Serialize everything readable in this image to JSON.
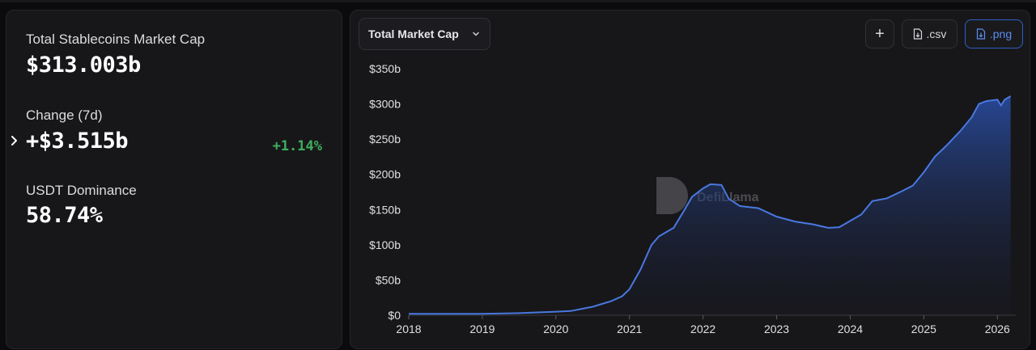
{
  "stats": {
    "market_cap_label": "Total Stablecoins Market Cap",
    "market_cap_value": "$313.003b",
    "change_label": "Change (7d)",
    "change_value": "+$3.515b",
    "change_pct": "+1.14%",
    "dominance_label": "USDT Dominance",
    "dominance_value": "58.74%"
  },
  "toolbar": {
    "metric_select": "Total Market Cap",
    "add_label": "+",
    "csv_label": ".csv",
    "png_label": ".png"
  },
  "watermark": "DefiLlama",
  "colors": {
    "accent": "#4a78e0",
    "positive": "#3fae5c",
    "panel": "#17171a"
  },
  "chart_data": {
    "type": "area",
    "title": "",
    "xlabel": "",
    "ylabel": "",
    "x_ticks": [
      "2018",
      "2019",
      "2020",
      "2021",
      "2022",
      "2023",
      "2024",
      "2025",
      "2026"
    ],
    "y_ticks": [
      "$0",
      "$50b",
      "$100b",
      "$150b",
      "$200b",
      "$250b",
      "$300b",
      "$350b"
    ],
    "xlim": [
      2018.0,
      2026.25
    ],
    "ylim": [
      0,
      350
    ],
    "unit": "billions USD",
    "series": [
      {
        "x": [
          2018.0,
          2018.5,
          2019.0,
          2019.5,
          2019.75,
          2020.0,
          2020.2,
          2020.5,
          2020.75,
          2020.9,
          2021.0,
          2021.15,
          2021.3,
          2021.4,
          2021.6,
          2021.75,
          2021.85,
          2022.0,
          2022.1,
          2022.25,
          2022.35,
          2022.4,
          2022.5,
          2022.75,
          2023.0,
          2023.25,
          2023.5,
          2023.7,
          2023.85,
          2024.0,
          2024.15,
          2024.3,
          2024.5,
          2024.7,
          2024.85,
          2025.0,
          2025.15,
          2025.3,
          2025.5,
          2025.65,
          2025.75,
          2025.85,
          2026.0,
          2026.05,
          2026.1,
          2026.18
        ],
        "y": [
          2,
          2,
          2,
          3,
          4,
          5,
          6,
          12,
          20,
          27,
          37,
          65,
          100,
          112,
          124,
          150,
          168,
          180,
          186,
          185,
          165,
          162,
          155,
          152,
          140,
          133,
          129,
          124,
          125,
          134,
          143,
          162,
          166,
          176,
          184,
          203,
          225,
          240,
          262,
          281,
          300,
          304,
          306,
          298,
          306,
          311
        ]
      }
    ]
  }
}
